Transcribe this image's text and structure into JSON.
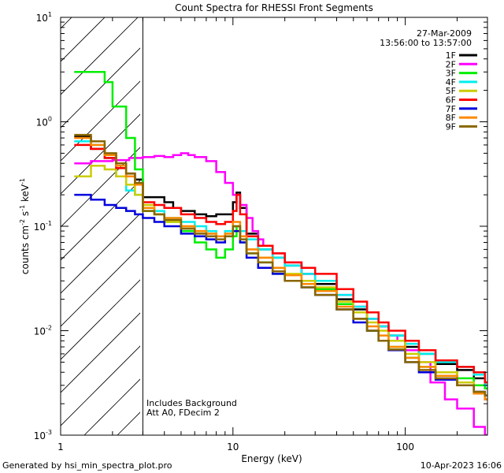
{
  "chart_data": {
    "type": "line",
    "title": "Count Spectra for RHESSI Front Segments",
    "xlabel": "Energy (keV)",
    "ylabel": "counts cm-2 s-1 keV-1",
    "xscale": "log",
    "yscale": "log",
    "xlim": [
      1,
      300
    ],
    "ylim": [
      0.001,
      10
    ],
    "date": "27-Mar-2009",
    "time_range": "13:56:00 to 13:57:00",
    "x_ticks": [
      {
        "value": 1,
        "label": "1"
      },
      {
        "value": 10,
        "label": "10"
      },
      {
        "value": 100,
        "label": "100"
      }
    ],
    "y_ticks": [
      {
        "value": 0.001,
        "base": "10",
        "exp": "-3"
      },
      {
        "value": 0.01,
        "base": "10",
        "exp": "-2"
      },
      {
        "value": 0.1,
        "base": "10",
        "exp": "-1"
      },
      {
        "value": 1,
        "base": "10",
        "exp": "0"
      },
      {
        "value": 10,
        "base": "10",
        "exp": "1"
      }
    ],
    "shaded_region": {
      "x_from": 1,
      "x_to": 3,
      "style": "hatched"
    },
    "annotations": [
      "Includes Background",
      "Att A0, FDecim 2"
    ],
    "series": [
      {
        "name": "1F",
        "color": "#000000",
        "x": [
          1.2,
          1.5,
          1.8,
          2.1,
          2.4,
          2.7,
          3.0,
          3.5,
          4.0,
          4.5,
          5.0,
          6.0,
          7.0,
          8.0,
          9.0,
          10.0,
          10.5,
          11.0,
          12.0,
          14.0,
          17.0,
          20.0,
          25.0,
          30.0,
          40.0,
          50.0,
          60.0,
          70.0,
          80.0,
          100.0,
          120.0,
          150.0,
          200.0,
          250.0,
          290.0
        ],
        "y": [
          0.72,
          0.55,
          0.45,
          0.38,
          0.32,
          0.28,
          0.19,
          0.19,
          0.17,
          0.15,
          0.14,
          0.13,
          0.125,
          0.13,
          0.13,
          0.17,
          0.21,
          0.15,
          0.085,
          0.06,
          0.05,
          0.042,
          0.035,
          0.028,
          0.02,
          0.016,
          0.013,
          0.011,
          0.009,
          0.007,
          0.006,
          0.0048,
          0.0042,
          0.0035,
          0.0028
        ]
      },
      {
        "name": "2F",
        "color": "#ff00ff",
        "x": [
          1.2,
          1.5,
          2.0,
          2.5,
          3.0,
          3.5,
          4.0,
          4.5,
          5.0,
          5.5,
          6.0,
          7.0,
          8.0,
          9.0,
          10.0,
          11.0,
          12.0,
          13.0,
          14.0,
          15.0,
          17.0,
          20.0,
          25.0,
          30.0,
          40.0,
          50.0,
          60.0,
          70.0,
          80.0,
          90.0,
          100.0,
          120.0,
          140.0,
          170.0,
          200.0,
          250.0,
          290.0
        ],
        "y": [
          0.4,
          0.42,
          0.43,
          0.45,
          0.46,
          0.47,
          0.46,
          0.48,
          0.5,
          0.48,
          0.46,
          0.42,
          0.33,
          0.26,
          0.2,
          0.16,
          0.12,
          0.09,
          0.075,
          0.065,
          0.055,
          0.045,
          0.035,
          0.03,
          0.022,
          0.017,
          0.013,
          0.011,
          0.009,
          0.008,
          0.0065,
          0.005,
          0.0032,
          0.0022,
          0.0018,
          0.0012,
          0.001
        ]
      },
      {
        "name": "3F",
        "color": "#00ee00",
        "x": [
          1.2,
          1.5,
          1.8,
          2.0,
          2.4,
          2.7,
          3.0,
          3.5,
          4.0,
          5.0,
          6.0,
          7.0,
          8.0,
          9.0,
          10.0,
          10.5,
          11.0,
          12.0,
          14.0,
          17.0,
          20.0,
          25.0,
          30.0,
          40.0,
          50.0,
          60.0,
          70.0,
          80.0,
          100.0,
          120.0,
          150.0,
          200.0,
          250.0,
          290.0
        ],
        "y": [
          3.0,
          3.0,
          2.4,
          1.4,
          0.7,
          0.35,
          0.14,
          0.13,
          0.11,
          0.09,
          0.07,
          0.06,
          0.05,
          0.06,
          0.08,
          0.1,
          0.07,
          0.055,
          0.045,
          0.035,
          0.03,
          0.028,
          0.025,
          0.018,
          0.013,
          0.01,
          0.008,
          0.007,
          0.0055,
          0.0045,
          0.004,
          0.0035,
          0.003,
          0.0028
        ]
      },
      {
        "name": "4F",
        "color": "#00eeee",
        "x": [
          1.2,
          1.5,
          1.8,
          2.1,
          2.4,
          2.7,
          3.0,
          3.5,
          4.0,
          5.0,
          6.0,
          7.0,
          8.0,
          9.0,
          10.0,
          11.0,
          12.0,
          14.0,
          17.0,
          20.0,
          25.0,
          30.0,
          40.0,
          50.0,
          60.0,
          70.0,
          80.0,
          100.0,
          120.0,
          150.0,
          200.0,
          250.0,
          290.0
        ],
        "y": [
          0.65,
          0.6,
          0.45,
          0.3,
          0.22,
          0.2,
          0.15,
          0.14,
          0.12,
          0.11,
          0.1,
          0.09,
          0.08,
          0.09,
          0.1,
          0.09,
          0.075,
          0.06,
          0.05,
          0.042,
          0.035,
          0.03,
          0.022,
          0.017,
          0.013,
          0.011,
          0.009,
          0.0075,
          0.006,
          0.005,
          0.0045,
          0.0038,
          0.003
        ]
      },
      {
        "name": "5F",
        "color": "#cccc00",
        "x": [
          1.2,
          1.5,
          1.8,
          2.1,
          2.4,
          2.7,
          3.0,
          3.5,
          4.0,
          5.0,
          6.0,
          7.0,
          8.0,
          9.0,
          10.0,
          11.0,
          12.0,
          14.0,
          17.0,
          20.0,
          25.0,
          30.0,
          40.0,
          50.0,
          60.0,
          70.0,
          80.0,
          100.0,
          120.0,
          150.0,
          200.0,
          250.0,
          290.0
        ],
        "y": [
          0.3,
          0.38,
          0.35,
          0.3,
          0.25,
          0.2,
          0.16,
          0.13,
          0.11,
          0.1,
          0.09,
          0.085,
          0.08,
          0.085,
          0.1,
          0.08,
          0.06,
          0.05,
          0.04,
          0.035,
          0.03,
          0.026,
          0.019,
          0.015,
          0.012,
          0.01,
          0.008,
          0.006,
          0.005,
          0.004,
          0.0032,
          0.0025,
          0.0022
        ]
      },
      {
        "name": "6F",
        "color": "#ff0000",
        "x": [
          1.2,
          1.5,
          1.8,
          2.1,
          2.4,
          2.7,
          3.0,
          3.5,
          4.0,
          5.0,
          6.0,
          7.0,
          8.0,
          9.0,
          10.0,
          10.5,
          11.0,
          12.0,
          14.0,
          17.0,
          20.0,
          25.0,
          30.0,
          40.0,
          50.0,
          60.0,
          70.0,
          80.0,
          100.0,
          120.0,
          150.0,
          200.0,
          250.0,
          290.0
        ],
        "y": [
          0.6,
          0.55,
          0.45,
          0.36,
          0.3,
          0.25,
          0.17,
          0.16,
          0.15,
          0.13,
          0.12,
          0.11,
          0.105,
          0.11,
          0.14,
          0.2,
          0.13,
          0.08,
          0.065,
          0.055,
          0.045,
          0.04,
          0.035,
          0.025,
          0.019,
          0.015,
          0.012,
          0.01,
          0.008,
          0.0065,
          0.0052,
          0.0045,
          0.004,
          0.0032
        ]
      },
      {
        "name": "7F",
        "color": "#0000dd",
        "x": [
          1.2,
          1.5,
          1.8,
          2.1,
          2.4,
          2.7,
          3.0,
          3.5,
          4.0,
          5.0,
          6.0,
          7.0,
          8.0,
          9.0,
          10.0,
          11.0,
          12.0,
          14.0,
          17.0,
          20.0,
          25.0,
          30.0,
          40.0,
          50.0,
          60.0,
          70.0,
          80.0,
          100.0,
          120.0,
          150.0,
          200.0,
          250.0,
          290.0
        ],
        "y": [
          0.2,
          0.18,
          0.16,
          0.15,
          0.14,
          0.13,
          0.12,
          0.11,
          0.1,
          0.085,
          0.08,
          0.075,
          0.07,
          0.08,
          0.09,
          0.07,
          0.05,
          0.04,
          0.035,
          0.03,
          0.026,
          0.022,
          0.016,
          0.012,
          0.01,
          0.008,
          0.0065,
          0.005,
          0.004,
          0.0034,
          0.003,
          0.0026,
          0.0022
        ]
      },
      {
        "name": "8F",
        "color": "#ff8800",
        "x": [
          1.2,
          1.5,
          1.8,
          2.1,
          2.4,
          2.7,
          3.0,
          3.5,
          4.0,
          5.0,
          6.0,
          7.0,
          8.0,
          9.0,
          10.0,
          11.0,
          12.0,
          14.0,
          17.0,
          20.0,
          25.0,
          30.0,
          40.0,
          50.0,
          60.0,
          70.0,
          80.0,
          100.0,
          120.0,
          150.0,
          200.0,
          250.0,
          290.0
        ],
        "y": [
          0.7,
          0.6,
          0.48,
          0.38,
          0.3,
          0.25,
          0.15,
          0.13,
          0.12,
          0.1,
          0.09,
          0.085,
          0.08,
          0.085,
          0.11,
          0.08,
          0.06,
          0.05,
          0.04,
          0.034,
          0.028,
          0.024,
          0.017,
          0.013,
          0.011,
          0.009,
          0.007,
          0.0055,
          0.0045,
          0.0037,
          0.003,
          0.0025,
          0.0022
        ]
      },
      {
        "name": "9F",
        "color": "#886600",
        "x": [
          1.2,
          1.5,
          1.8,
          2.1,
          2.4,
          2.7,
          3.0,
          3.5,
          4.0,
          5.0,
          6.0,
          7.0,
          8.0,
          9.0,
          10.0,
          11.0,
          12.0,
          14.0,
          17.0,
          20.0,
          25.0,
          30.0,
          40.0,
          50.0,
          60.0,
          70.0,
          80.0,
          100.0,
          120.0,
          150.0,
          200.0,
          250.0,
          290.0
        ],
        "y": [
          0.75,
          0.65,
          0.5,
          0.4,
          0.32,
          0.26,
          0.14,
          0.13,
          0.115,
          0.095,
          0.085,
          0.08,
          0.075,
          0.08,
          0.1,
          0.075,
          0.055,
          0.045,
          0.037,
          0.03,
          0.026,
          0.022,
          0.016,
          0.013,
          0.01,
          0.008,
          0.0066,
          0.005,
          0.0042,
          0.0035,
          0.003,
          0.0026,
          0.0024
        ]
      }
    ]
  },
  "footer": {
    "left": "Generated by hsi_min_spectra_plot.pro",
    "right": "10-Apr-2023 16:06"
  }
}
